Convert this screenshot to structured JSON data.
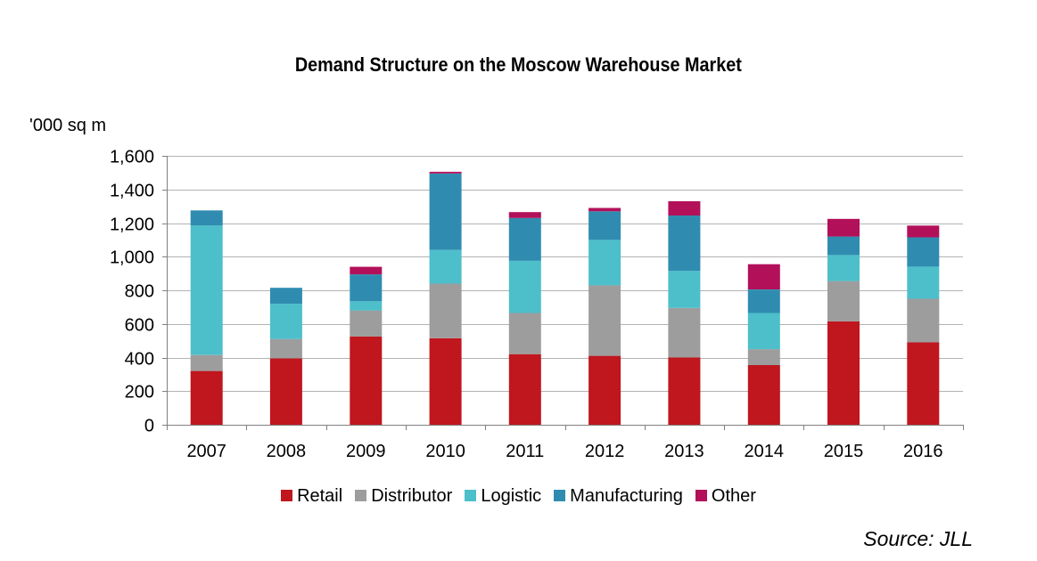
{
  "chart_data": {
    "type": "bar",
    "stacked": true,
    "title": "Demand Structure on the Moscow Warehouse Market",
    "ylabel": "'000 sq m",
    "xlabel": "",
    "categories": [
      "2007",
      "2008",
      "2009",
      "2010",
      "2011",
      "2012",
      "2013",
      "2014",
      "2015",
      "2016"
    ],
    "ylim": [
      0,
      1600
    ],
    "yticks": [
      0,
      200,
      400,
      600,
      800,
      1000,
      1200,
      1400,
      1600
    ],
    "ytick_labels": [
      "0",
      "200",
      "400",
      "600",
      "800",
      "1,000",
      "1,200",
      "1,400",
      "1,600"
    ],
    "grid": true,
    "legend_position": "bottom",
    "series": [
      {
        "name": "Retail",
        "color": "#c0161e",
        "values": [
          320,
          395,
          525,
          515,
          420,
          410,
          400,
          355,
          615,
          490
        ]
      },
      {
        "name": "Distributor",
        "color": "#9d9d9d",
        "values": [
          95,
          115,
          155,
          325,
          245,
          420,
          295,
          95,
          240,
          260
        ]
      },
      {
        "name": "Logistic",
        "color": "#4dbfcb",
        "values": [
          770,
          210,
          55,
          200,
          310,
          270,
          220,
          215,
          155,
          190
        ]
      },
      {
        "name": "Manufacturing",
        "color": "#2f8cb0",
        "values": [
          90,
          95,
          160,
          455,
          255,
          170,
          330,
          140,
          110,
          175
        ]
      },
      {
        "name": "Other",
        "color": "#b3105a",
        "values": [
          0,
          0,
          45,
          10,
          35,
          20,
          85,
          150,
          105,
          70
        ]
      }
    ]
  },
  "source": "Source: JLL"
}
